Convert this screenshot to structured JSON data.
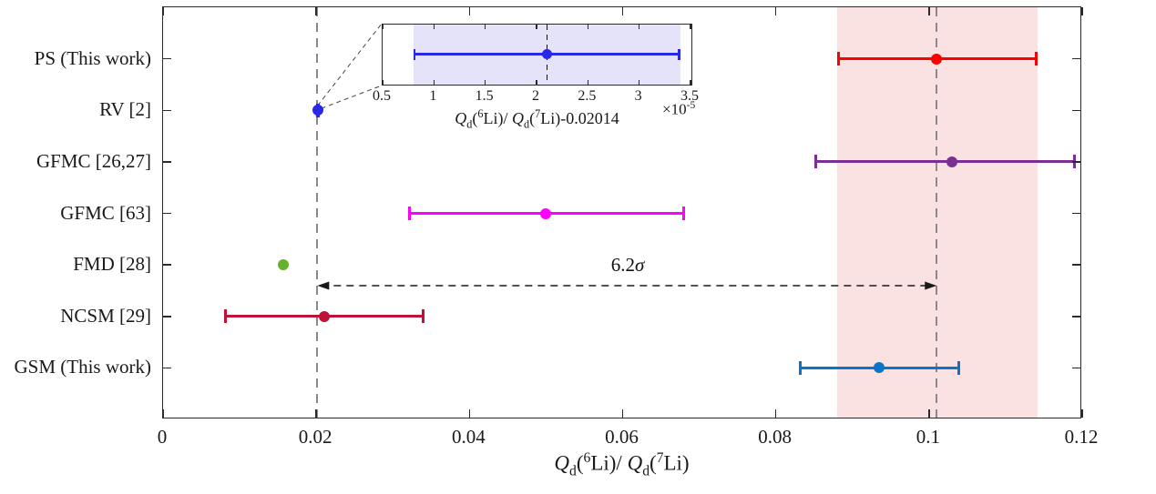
{
  "chart_data": {
    "type": "scatter",
    "title": "",
    "xlabel_plain": "Q_d(6Li)/ Q_d(7Li)",
    "xlim": [
      0,
      0.12
    ],
    "grid": false,
    "axis_color": "#2B2B2B",
    "xticks": [
      {
        "v": 0,
        "label": "0"
      },
      {
        "v": 0.02,
        "label": "0.02"
      },
      {
        "v": 0.04,
        "label": "0.04"
      },
      {
        "v": 0.06,
        "label": "0.06"
      },
      {
        "v": 0.08,
        "label": "0.08"
      },
      {
        "v": 0.1,
        "label": "0.1"
      },
      {
        "v": 0.12,
        "label": "0.12"
      }
    ],
    "rows": [
      {
        "label": "PS (This work)",
        "value": 0.101,
        "err_minus": 0.013,
        "err_plus": 0.013,
        "color": "#FF0000"
      },
      {
        "label": "RV [2]",
        "value": 0.020161,
        "err_minus": 1.3e-05,
        "err_plus": 1.3e-05,
        "color": "#2828E6"
      },
      {
        "label": "GFMC [26,27]",
        "value": 0.103,
        "err_minus": 0.018,
        "err_plus": 0.016,
        "color": "#7B2F93"
      },
      {
        "label": "GFMC [63]",
        "value": 0.05,
        "err_minus": 0.018,
        "err_plus": 0.018,
        "color": "#FF00FF"
      },
      {
        "label": "FMD [28]",
        "value": 0.0157,
        "err_minus": null,
        "err_plus": null,
        "color": "#66B22C"
      },
      {
        "label": "NCSM [29]",
        "value": 0.021,
        "err_minus": 0.013,
        "err_plus": 0.013,
        "color": "#BE1238"
      },
      {
        "label": "GSM (This work)",
        "value": 0.0935,
        "err_minus": 0.0105,
        "err_plus": 0.0105,
        "color": "#0C74C8"
      }
    ],
    "band": {
      "from": 0.088,
      "to": 0.1142,
      "color": "#FBE2E2"
    },
    "vlines": [
      {
        "x": 0.02014,
        "color": "#8A8A8A"
      },
      {
        "x": 0.101,
        "color": "#8A8A8A"
      }
    ],
    "arrow": {
      "from": 0.02014,
      "to": 0.101,
      "label_num": "6.2",
      "label_sigma": "σ",
      "color": "#1A1A1A"
    },
    "inset": {
      "xlim": [
        0.5,
        3.5
      ],
      "xlabel_plain": "Q_d(6Li)/ Q_d(7Li)-0.02014",
      "scale": {
        "base": "×10",
        "exp": "-5"
      },
      "xticks": [
        {
          "v": 0.5,
          "label": "0.5"
        },
        {
          "v": 1,
          "label": "1"
        },
        {
          "v": 1.5,
          "label": "1.5"
        },
        {
          "v": 2,
          "label": "2"
        },
        {
          "v": 2.5,
          "label": "2.5"
        },
        {
          "v": 3,
          "label": "3"
        },
        {
          "v": 3.5,
          "label": "3.5"
        }
      ],
      "point": {
        "value": 2.1,
        "err_minus": 1.3,
        "err_plus": 1.3,
        "color": "#2828E6"
      },
      "band": {
        "from": 0.8,
        "to": 3.4,
        "color": "#E4E3F9"
      },
      "vline": 2.1
    }
  },
  "labels": {
    "xlabel": {
      "q1": "Q",
      "d1": "d",
      "o1": "(",
      "s6": "6",
      "m1": "Li)/ ",
      "q2": "Q",
      "d2": "d",
      "o2": "(",
      "s7": "7",
      "m2": "Li)"
    },
    "inset_xlabel": {
      "q1": "Q",
      "d1": "d",
      "o1": "(",
      "s6": "6",
      "m1": "Li)/ ",
      "q2": "Q",
      "d2": "d",
      "o2": "(",
      "s7": "7",
      "m2": "Li)-0.02014"
    }
  }
}
